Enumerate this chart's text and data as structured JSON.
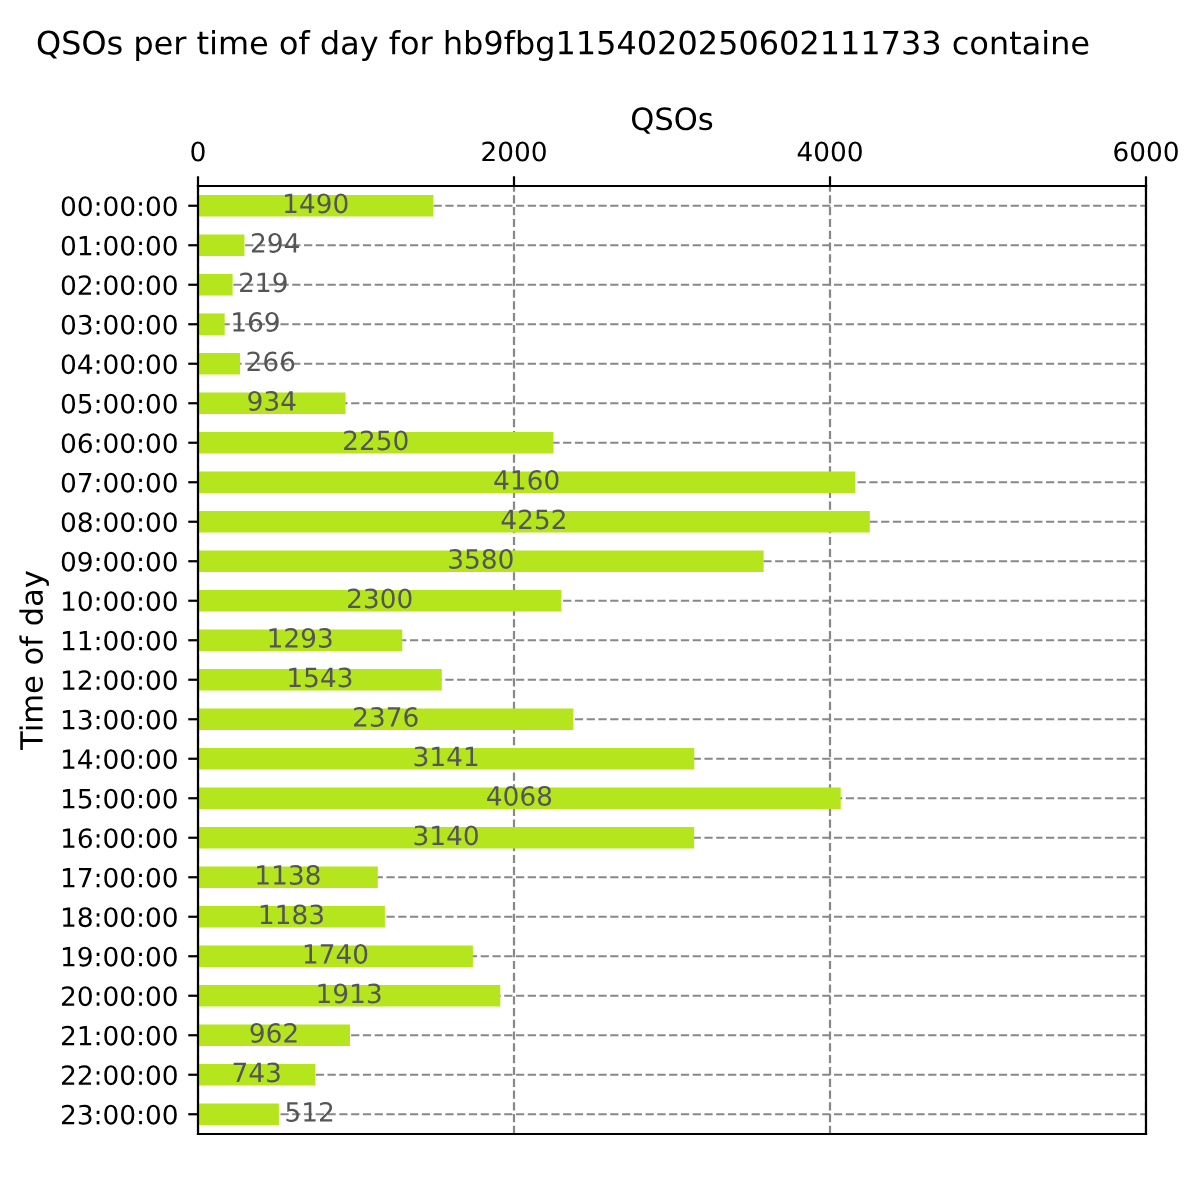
{
  "chart_data": {
    "type": "bar",
    "orientation": "horizontal",
    "title": "QSOs per time of day for hb9fbg1154020250602111733 containe",
    "xlabel": "QSOs",
    "ylabel": "Time of day",
    "categories": [
      "00:00:00",
      "01:00:00",
      "02:00:00",
      "03:00:00",
      "04:00:00",
      "05:00:00",
      "06:00:00",
      "07:00:00",
      "08:00:00",
      "09:00:00",
      "10:00:00",
      "11:00:00",
      "12:00:00",
      "13:00:00",
      "14:00:00",
      "15:00:00",
      "16:00:00",
      "17:00:00",
      "18:00:00",
      "19:00:00",
      "20:00:00",
      "21:00:00",
      "22:00:00",
      "23:00:00"
    ],
    "values": [
      1490,
      294,
      219,
      169,
      266,
      934,
      2250,
      4160,
      4252,
      3580,
      2300,
      1293,
      1543,
      2376,
      3141,
      4068,
      3140,
      1138,
      1183,
      1740,
      1913,
      962,
      743,
      512
    ],
    "color": "#b5e61d",
    "xlim": [
      0,
      6000
    ],
    "xticks": [
      0,
      2000,
      4000,
      6000
    ],
    "grid": true,
    "data_labels": true
  }
}
